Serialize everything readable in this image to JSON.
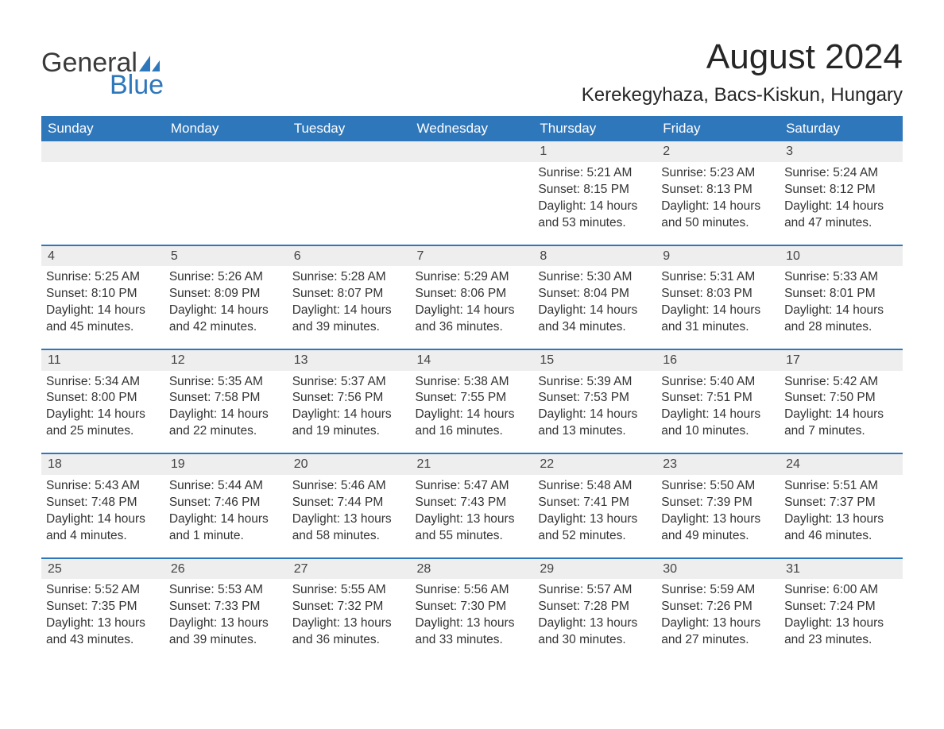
{
  "logo": {
    "word1": "General",
    "word2": "Blue"
  },
  "title": "August 2024",
  "location": "Kerekegyhaza, Bacs-Kiskun, Hungary",
  "colors": {
    "header_bg": "#2f77bb",
    "header_text": "#ffffff",
    "row_divider": "#2f77bb",
    "daynum_bg": "#eeeeee",
    "body_text": "#333333",
    "page_bg": "#ffffff",
    "logo_blue": "#2f77bb",
    "logo_gray": "#3a3a3a"
  },
  "day_headers": [
    "Sunday",
    "Monday",
    "Tuesday",
    "Wednesday",
    "Thursday",
    "Friday",
    "Saturday"
  ],
  "weeks": [
    [
      {
        "empty": true
      },
      {
        "empty": true
      },
      {
        "empty": true
      },
      {
        "empty": true
      },
      {
        "day": "1",
        "sunrise": "Sunrise: 5:21 AM",
        "sunset": "Sunset: 8:15 PM",
        "daylight": "Daylight: 14 hours and 53 minutes."
      },
      {
        "day": "2",
        "sunrise": "Sunrise: 5:23 AM",
        "sunset": "Sunset: 8:13 PM",
        "daylight": "Daylight: 14 hours and 50 minutes."
      },
      {
        "day": "3",
        "sunrise": "Sunrise: 5:24 AM",
        "sunset": "Sunset: 8:12 PM",
        "daylight": "Daylight: 14 hours and 47 minutes."
      }
    ],
    [
      {
        "day": "4",
        "sunrise": "Sunrise: 5:25 AM",
        "sunset": "Sunset: 8:10 PM",
        "daylight": "Daylight: 14 hours and 45 minutes."
      },
      {
        "day": "5",
        "sunrise": "Sunrise: 5:26 AM",
        "sunset": "Sunset: 8:09 PM",
        "daylight": "Daylight: 14 hours and 42 minutes."
      },
      {
        "day": "6",
        "sunrise": "Sunrise: 5:28 AM",
        "sunset": "Sunset: 8:07 PM",
        "daylight": "Daylight: 14 hours and 39 minutes."
      },
      {
        "day": "7",
        "sunrise": "Sunrise: 5:29 AM",
        "sunset": "Sunset: 8:06 PM",
        "daylight": "Daylight: 14 hours and 36 minutes."
      },
      {
        "day": "8",
        "sunrise": "Sunrise: 5:30 AM",
        "sunset": "Sunset: 8:04 PM",
        "daylight": "Daylight: 14 hours and 34 minutes."
      },
      {
        "day": "9",
        "sunrise": "Sunrise: 5:31 AM",
        "sunset": "Sunset: 8:03 PM",
        "daylight": "Daylight: 14 hours and 31 minutes."
      },
      {
        "day": "10",
        "sunrise": "Sunrise: 5:33 AM",
        "sunset": "Sunset: 8:01 PM",
        "daylight": "Daylight: 14 hours and 28 minutes."
      }
    ],
    [
      {
        "day": "11",
        "sunrise": "Sunrise: 5:34 AM",
        "sunset": "Sunset: 8:00 PM",
        "daylight": "Daylight: 14 hours and 25 minutes."
      },
      {
        "day": "12",
        "sunrise": "Sunrise: 5:35 AM",
        "sunset": "Sunset: 7:58 PM",
        "daylight": "Daylight: 14 hours and 22 minutes."
      },
      {
        "day": "13",
        "sunrise": "Sunrise: 5:37 AM",
        "sunset": "Sunset: 7:56 PM",
        "daylight": "Daylight: 14 hours and 19 minutes."
      },
      {
        "day": "14",
        "sunrise": "Sunrise: 5:38 AM",
        "sunset": "Sunset: 7:55 PM",
        "daylight": "Daylight: 14 hours and 16 minutes."
      },
      {
        "day": "15",
        "sunrise": "Sunrise: 5:39 AM",
        "sunset": "Sunset: 7:53 PM",
        "daylight": "Daylight: 14 hours and 13 minutes."
      },
      {
        "day": "16",
        "sunrise": "Sunrise: 5:40 AM",
        "sunset": "Sunset: 7:51 PM",
        "daylight": "Daylight: 14 hours and 10 minutes."
      },
      {
        "day": "17",
        "sunrise": "Sunrise: 5:42 AM",
        "sunset": "Sunset: 7:50 PM",
        "daylight": "Daylight: 14 hours and 7 minutes."
      }
    ],
    [
      {
        "day": "18",
        "sunrise": "Sunrise: 5:43 AM",
        "sunset": "Sunset: 7:48 PM",
        "daylight": "Daylight: 14 hours and 4 minutes."
      },
      {
        "day": "19",
        "sunrise": "Sunrise: 5:44 AM",
        "sunset": "Sunset: 7:46 PM",
        "daylight": "Daylight: 14 hours and 1 minute."
      },
      {
        "day": "20",
        "sunrise": "Sunrise: 5:46 AM",
        "sunset": "Sunset: 7:44 PM",
        "daylight": "Daylight: 13 hours and 58 minutes."
      },
      {
        "day": "21",
        "sunrise": "Sunrise: 5:47 AM",
        "sunset": "Sunset: 7:43 PM",
        "daylight": "Daylight: 13 hours and 55 minutes."
      },
      {
        "day": "22",
        "sunrise": "Sunrise: 5:48 AM",
        "sunset": "Sunset: 7:41 PM",
        "daylight": "Daylight: 13 hours and 52 minutes."
      },
      {
        "day": "23",
        "sunrise": "Sunrise: 5:50 AM",
        "sunset": "Sunset: 7:39 PM",
        "daylight": "Daylight: 13 hours and 49 minutes."
      },
      {
        "day": "24",
        "sunrise": "Sunrise: 5:51 AM",
        "sunset": "Sunset: 7:37 PM",
        "daylight": "Daylight: 13 hours and 46 minutes."
      }
    ],
    [
      {
        "day": "25",
        "sunrise": "Sunrise: 5:52 AM",
        "sunset": "Sunset: 7:35 PM",
        "daylight": "Daylight: 13 hours and 43 minutes."
      },
      {
        "day": "26",
        "sunrise": "Sunrise: 5:53 AM",
        "sunset": "Sunset: 7:33 PM",
        "daylight": "Daylight: 13 hours and 39 minutes."
      },
      {
        "day": "27",
        "sunrise": "Sunrise: 5:55 AM",
        "sunset": "Sunset: 7:32 PM",
        "daylight": "Daylight: 13 hours and 36 minutes."
      },
      {
        "day": "28",
        "sunrise": "Sunrise: 5:56 AM",
        "sunset": "Sunset: 7:30 PM",
        "daylight": "Daylight: 13 hours and 33 minutes."
      },
      {
        "day": "29",
        "sunrise": "Sunrise: 5:57 AM",
        "sunset": "Sunset: 7:28 PM",
        "daylight": "Daylight: 13 hours and 30 minutes."
      },
      {
        "day": "30",
        "sunrise": "Sunrise: 5:59 AM",
        "sunset": "Sunset: 7:26 PM",
        "daylight": "Daylight: 13 hours and 27 minutes."
      },
      {
        "day": "31",
        "sunrise": "Sunrise: 6:00 AM",
        "sunset": "Sunset: 7:24 PM",
        "daylight": "Daylight: 13 hours and 23 minutes."
      }
    ]
  ]
}
